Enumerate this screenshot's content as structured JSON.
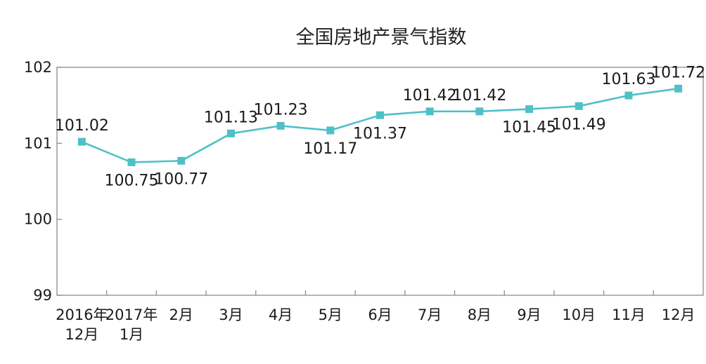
{
  "chart_data": {
    "type": "line",
    "title": "全国房地产景气指数",
    "xlabel": "",
    "ylabel": "",
    "ylim": [
      99,
      102
    ],
    "yticks": [
      "102",
      "101",
      "100",
      "99"
    ],
    "grid": false,
    "categories": [
      [
        "2016年",
        "12月"
      ],
      [
        "2017年",
        "1月"
      ],
      [
        "2月"
      ],
      [
        "3月"
      ],
      [
        "4月"
      ],
      [
        "5月"
      ],
      [
        "6月"
      ],
      [
        "7月"
      ],
      [
        "8月"
      ],
      [
        "9月"
      ],
      [
        "10月"
      ],
      [
        "11月"
      ],
      [
        "12月"
      ]
    ],
    "series": [
      {
        "values": [
          101.02,
          100.75,
          100.77,
          101.13,
          101.23,
          101.17,
          101.37,
          101.42,
          101.42,
          101.45,
          101.49,
          101.63,
          101.72
        ],
        "labels": [
          "101.02",
          "100.75",
          "100.77",
          "101.13",
          "101.23",
          "101.17",
          "101.37",
          "101.42",
          "101.42",
          "101.45",
          "101.49",
          "101.63",
          "101.72"
        ],
        "color": "#4fc0c8"
      }
    ],
    "axis_color": "#8c8c8c"
  }
}
